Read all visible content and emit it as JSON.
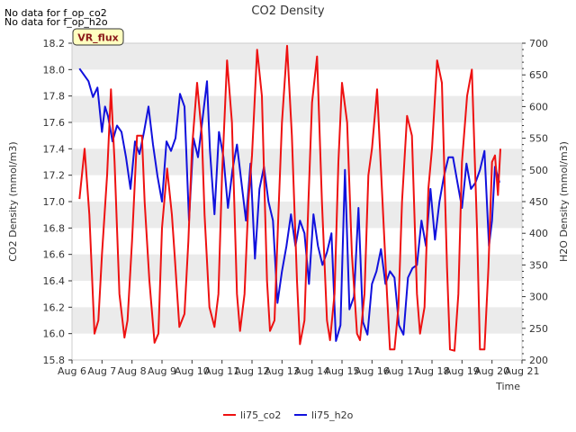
{
  "notices": [
    "No data for f_op_co2",
    "No data for f_op_h2o"
  ],
  "site_badge": "VR_flux",
  "colors": {
    "co2": "#ee1111",
    "h2o": "#1111dd",
    "badge_bg": "#ffffc0",
    "badge_text": "#8b1a1a",
    "band": "#ebebeb"
  },
  "chart_data": {
    "type": "line",
    "title": "CO2 Density",
    "xlabel": "Time",
    "ylabel_left": "CO2 Density (mmol/m3)",
    "ylabel_right": "H2O Density (mmol/m3)",
    "x_ticks": [
      "Aug 6",
      "Aug 7",
      "Aug 8",
      "Aug 9",
      "Aug 10",
      "Aug 11",
      "Aug 12",
      "Aug 13",
      "Aug 14",
      "Aug 15",
      "Aug 16",
      "Aug 17",
      "Aug 18",
      "Aug 19",
      "Aug 20",
      "Aug 21"
    ],
    "xlim_days": [
      6,
      21
    ],
    "ylim_left": [
      15.8,
      18.2
    ],
    "ylim_right": [
      200,
      700
    ],
    "y_ticks_left": [
      "15.8",
      "16.0",
      "16.2",
      "16.4",
      "16.6",
      "16.8",
      "17.0",
      "17.2",
      "17.4",
      "17.6",
      "17.8",
      "18.0",
      "18.2"
    ],
    "y_ticks_right": [
      "200",
      "250",
      "300",
      "350",
      "400",
      "450",
      "500",
      "550",
      "600",
      "650",
      "700"
    ],
    "legend": [
      "li75_co2",
      "li75_h2o"
    ],
    "legend_position": "bottom-center",
    "grid": "horizontal bands",
    "series": [
      {
        "name": "li75_co2",
        "axis": "left",
        "x": [
          6.25,
          6.42,
          6.58,
          6.75,
          6.88,
          7.0,
          7.17,
          7.3,
          7.42,
          7.58,
          7.75,
          7.85,
          8.0,
          8.17,
          8.33,
          8.42,
          8.58,
          8.75,
          8.88,
          9.0,
          9.17,
          9.33,
          9.42,
          9.58,
          9.75,
          9.88,
          10.0,
          10.17,
          10.33,
          10.42,
          10.58,
          10.75,
          10.88,
          11.0,
          11.17,
          11.33,
          11.5,
          11.6,
          11.75,
          11.88,
          12.0,
          12.17,
          12.33,
          12.5,
          12.6,
          12.75,
          12.88,
          13.0,
          13.17,
          13.33,
          13.5,
          13.6,
          13.75,
          13.88,
          14.0,
          14.17,
          14.33,
          14.5,
          14.6,
          14.75,
          14.88,
          15.0,
          15.17,
          15.33,
          15.5,
          15.6,
          15.75,
          15.88,
          16.0,
          16.17,
          16.33,
          16.5,
          16.6,
          16.75,
          16.88,
          17.0,
          17.17,
          17.33,
          17.5,
          17.6,
          17.75,
          17.88,
          18.0,
          18.17,
          18.33,
          18.5,
          18.6,
          18.75,
          18.88,
          19.0,
          19.17,
          19.33,
          19.5,
          19.6,
          19.75,
          19.88,
          20.0,
          20.1,
          20.2,
          20.28
        ],
        "y": [
          17.02,
          17.4,
          16.9,
          16.0,
          16.1,
          16.6,
          17.2,
          17.85,
          17.3,
          16.3,
          15.97,
          16.1,
          16.7,
          17.5,
          17.5,
          17.0,
          16.4,
          15.93,
          16.0,
          16.8,
          17.25,
          16.9,
          16.6,
          16.05,
          16.15,
          16.7,
          17.4,
          17.9,
          17.5,
          16.9,
          16.2,
          16.05,
          16.3,
          17.2,
          18.07,
          17.6,
          16.3,
          16.02,
          16.3,
          17.0,
          17.35,
          18.15,
          17.8,
          16.4,
          16.02,
          16.1,
          16.9,
          17.6,
          18.18,
          17.5,
          16.4,
          15.92,
          16.1,
          17.0,
          17.75,
          18.1,
          17.0,
          16.1,
          15.95,
          16.3,
          17.3,
          17.9,
          17.6,
          16.6,
          16.0,
          15.95,
          16.3,
          17.2,
          17.4,
          17.85,
          17.1,
          16.3,
          15.88,
          15.88,
          16.2,
          17.0,
          17.65,
          17.5,
          16.3,
          16.0,
          16.2,
          17.1,
          17.4,
          18.07,
          17.9,
          16.5,
          15.88,
          15.87,
          16.3,
          17.3,
          17.8,
          18.0,
          16.8,
          15.88,
          15.88,
          16.5,
          17.3,
          17.35,
          17.05,
          17.4
        ]
      },
      {
        "name": "li75_h2o",
        "axis": "right",
        "x": [
          6.25,
          6.4,
          6.55,
          6.7,
          6.85,
          7.0,
          7.1,
          7.2,
          7.35,
          7.5,
          7.65,
          7.8,
          7.95,
          8.1,
          8.25,
          8.4,
          8.55,
          8.7,
          8.85,
          9.0,
          9.15,
          9.3,
          9.45,
          9.6,
          9.75,
          9.9,
          10.05,
          10.2,
          10.35,
          10.5,
          10.6,
          10.75,
          10.9,
          11.05,
          11.2,
          11.35,
          11.5,
          11.65,
          11.8,
          11.95,
          12.1,
          12.25,
          12.4,
          12.55,
          12.7,
          12.85,
          13.0,
          13.15,
          13.3,
          13.45,
          13.6,
          13.75,
          13.9,
          14.05,
          14.2,
          14.35,
          14.5,
          14.65,
          14.8,
          14.95,
          15.1,
          15.25,
          15.4,
          15.55,
          15.7,
          15.85,
          16.0,
          16.15,
          16.3,
          16.45,
          16.6,
          16.75,
          16.9,
          17.05,
          17.2,
          17.35,
          17.5,
          17.65,
          17.8,
          17.95,
          18.1,
          18.25,
          18.4,
          18.55,
          18.7,
          18.85,
          19.0,
          19.15,
          19.3,
          19.45,
          19.6,
          19.75,
          19.9,
          20.0,
          20.1,
          20.25
        ],
        "y": [
          660,
          650,
          640,
          615,
          630,
          560,
          600,
          585,
          545,
          570,
          560,
          520,
          470,
          545,
          525,
          560,
          600,
          540,
          490,
          450,
          545,
          530,
          550,
          620,
          600,
          420,
          550,
          520,
          580,
          640,
          530,
          430,
          560,
          520,
          440,
          500,
          540,
          480,
          420,
          510,
          360,
          470,
          505,
          450,
          420,
          290,
          340,
          380,
          430,
          380,
          420,
          400,
          320,
          430,
          380,
          350,
          370,
          400,
          230,
          255,
          500,
          280,
          300,
          440,
          260,
          240,
          320,
          340,
          375,
          320,
          340,
          330,
          255,
          240,
          330,
          345,
          350,
          420,
          380,
          470,
          390,
          450,
          490,
          520,
          520,
          480,
          440,
          510,
          470,
          480,
          500,
          530,
          380,
          420,
          505,
          480
        ]
      }
    ]
  }
}
